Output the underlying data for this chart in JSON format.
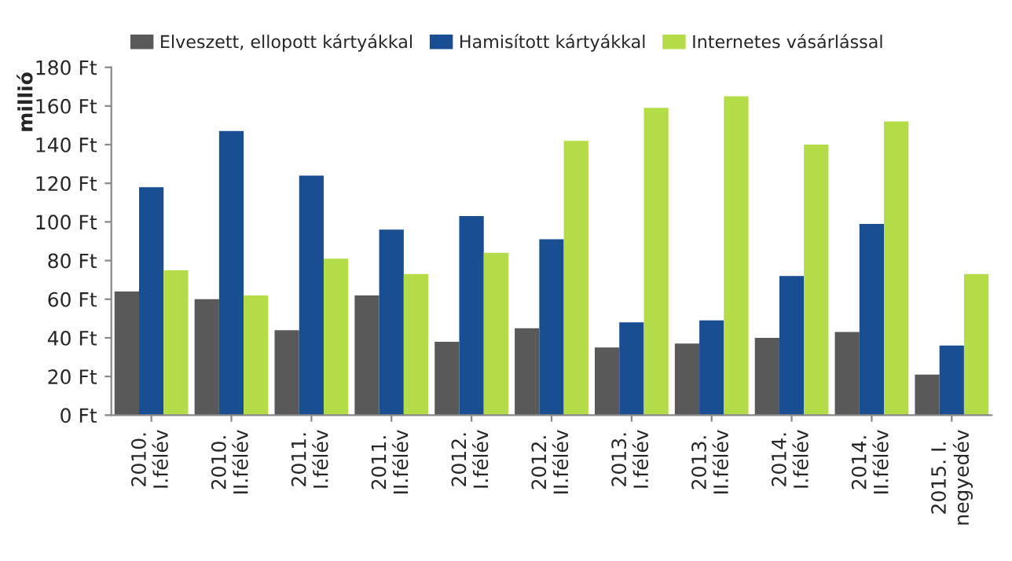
{
  "chart_data": {
    "type": "bar",
    "ylabel": "millió",
    "categories": [
      "2010.\nI.félév",
      "2010.\nII.félév",
      "2011.\nI.félév",
      "2011.\nII.félév",
      "2012.\nI.félév",
      "2012.\nII.félév",
      "2013.\nI.félév",
      "2013.\nII.félév",
      "2014.\nI.félév",
      "2014.\nII.félév",
      "2015. I.\nnegyedév"
    ],
    "series": [
      {
        "name": "Elveszett, ellopott kártyákkal",
        "color": "#595959",
        "values": [
          64,
          60,
          44,
          62,
          38,
          45,
          35,
          37,
          40,
          43,
          21
        ]
      },
      {
        "name": "Hamisított kártyákkal",
        "color": "#1a4e92",
        "values": [
          118,
          147,
          124,
          96,
          103,
          91,
          48,
          49,
          72,
          99,
          36
        ]
      },
      {
        "name": "Internetes vásárlással",
        "color": "#b4dc48",
        "values": [
          75,
          62,
          81,
          73,
          84,
          142,
          159,
          165,
          140,
          152,
          73
        ]
      }
    ],
    "ylim": [
      0,
      180
    ],
    "yticks": [
      {
        "value": 0,
        "label": "0 Ft"
      },
      {
        "value": 20,
        "label": "20 Ft"
      },
      {
        "value": 40,
        "label": "40 Ft"
      },
      {
        "value": 60,
        "label": "60 Ft"
      },
      {
        "value": 80,
        "label": "80 Ft"
      },
      {
        "value": 100,
        "label": "100 Ft"
      },
      {
        "value": 120,
        "label": "120 Ft"
      },
      {
        "value": 140,
        "label": "140 Ft"
      },
      {
        "value": 160,
        "label": "160 Ft"
      },
      {
        "value": 180,
        "label": "180 Ft"
      }
    ],
    "grid": false,
    "legend": "top"
  }
}
